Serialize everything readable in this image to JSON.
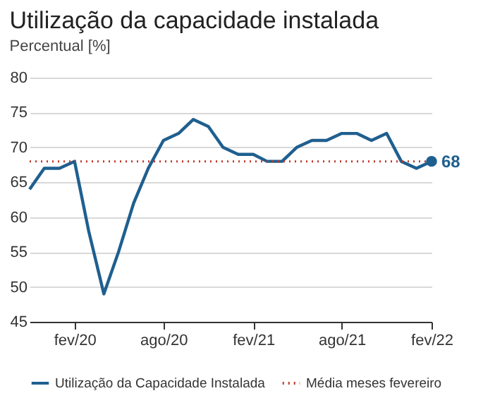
{
  "chart_data": {
    "type": "line",
    "title": "Utilização da capacidade instalada",
    "subtitle": "Percentual [%]",
    "x": [
      "2019-11",
      "2019-12",
      "2020-01",
      "2020-02",
      "2020-03",
      "2020-04",
      "2020-05",
      "2020-06",
      "2020-07",
      "2020-08",
      "2020-09",
      "2020-10",
      "2020-11",
      "2020-12",
      "2021-01",
      "2021-02",
      "2021-03",
      "2021-04",
      "2021-05",
      "2021-06",
      "2021-07",
      "2021-08",
      "2021-09",
      "2021-10",
      "2021-11",
      "2021-12",
      "2022-01",
      "2022-02"
    ],
    "series": [
      {
        "name": "Utilização da Capacidade Instalada",
        "color": "#1f5f8f",
        "values": [
          64,
          67,
          67,
          68,
          58,
          49,
          55,
          62,
          67,
          71,
          72,
          74,
          73,
          70,
          69,
          69,
          68,
          68,
          70,
          71,
          71,
          72,
          72,
          71,
          72,
          68,
          67,
          68
        ]
      }
    ],
    "xlim": [
      "2019-11",
      "2022-02"
    ],
    "xticks": [
      {
        "value": "2020-02",
        "label": "fev/20"
      },
      {
        "value": "2020-08",
        "label": "ago/20"
      },
      {
        "value": "2021-02",
        "label": "fev/21"
      },
      {
        "value": "2021-08",
        "label": "ago/21"
      },
      {
        "value": "2022-02",
        "label": "fev/22"
      }
    ],
    "ylim": [
      45,
      80
    ],
    "yticks": [
      45,
      50,
      55,
      60,
      65,
      70,
      75,
      80
    ],
    "grid": "y",
    "ref_lines": [
      {
        "axis": "y",
        "value": 68,
        "label": "Média meses fevereiro",
        "color": "#c0392b",
        "line_style": "dotted"
      }
    ],
    "annotations": [
      {
        "text": "68",
        "x": "2022-02",
        "y": 68
      }
    ],
    "legend": "bottom"
  }
}
